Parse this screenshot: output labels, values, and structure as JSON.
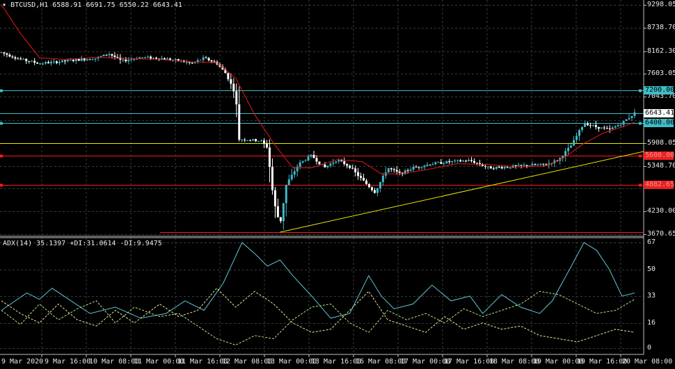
{
  "chart_header": {
    "symbol": "BTCUSD,H1",
    "ohlc": "6588.91 6691.75 6550.22 6643.41"
  },
  "indicator_header": {
    "label": "ADX(14) 35.1397 +DI:31.0614 -DI:9.9475"
  },
  "price_axis": [
    "9298.05",
    "8738.70",
    "8162.30",
    "7603.05",
    "7043.70",
    "5908.05",
    "5348.70",
    "4230.00",
    "3670.65"
  ],
  "level_tags": [
    {
      "text": "7200.00",
      "price": 7200,
      "bg": "#3fbcc6",
      "fg": "#000000",
      "line": "#3fbcc6"
    },
    {
      "text": "6400.00",
      "price": 6400,
      "bg": "#3fbcc6",
      "fg": "#000000",
      "line": "#3fbcc6"
    },
    {
      "text": "5600.00",
      "price": 5600,
      "bg": "#e82222",
      "fg": "#ff8c8c",
      "line": "#ff1a1a"
    },
    {
      "text": "4882.65",
      "price": 4882.65,
      "bg": "#e82222",
      "fg": "#ff8c8c",
      "line": "#ff1a1a"
    }
  ],
  "current_price": {
    "text": "6643.41",
    "price": 6643.41
  },
  "horizontal_levels": [
    {
      "price": 6643.41,
      "color": "#3fbcc6",
      "handle": false
    },
    {
      "price": 5908,
      "color": "#e8e800",
      "handle": false
    },
    {
      "price": 3720,
      "color": "#ff1a1a",
      "handle": false
    }
  ],
  "indicator_axis": [
    "67",
    "50",
    "33",
    "16",
    "0"
  ],
  "time_axis": [
    "9 Mar 2020",
    "9 Mar 16:00",
    "10 Mar 08:00",
    "11 Mar 00:00",
    "11 Mar 16:00",
    "12 Mar 08:00",
    "13 Mar 00:00",
    "13 Mar 16:00",
    "16 Mar 08:00",
    "17 Mar 00:00",
    "17 Mar 16:00",
    "18 Mar 08:00",
    "19 Mar 00:00",
    "19 Mar 16:00",
    "20 Mar 08:00"
  ],
  "colors": {
    "background": "#000000",
    "grid": "#3a3a3a",
    "bull_candle": "#40b8c8",
    "bear_candle": "#ffffff",
    "ma_line": "#e81818",
    "trendline": "#e8e800",
    "adx": "#5fc6d2",
    "plus_di": "#b8e888",
    "minus_di": "#e8e8a0",
    "text": "#e8e8e8"
  },
  "chart_data": {
    "type": "candlestick",
    "symbol": "BTCUSD",
    "timeframe": "H1",
    "ylim": [
      3670.65,
      9298.05
    ],
    "last": {
      "open": 6588.91,
      "high": 6691.75,
      "low": 6550.22,
      "close": 6643.41
    },
    "close_path": [
      {
        "t": 0,
        "price": 8130
      },
      {
        "t": 0.03,
        "price": 7960
      },
      {
        "t": 0.06,
        "price": 7860
      },
      {
        "t": 0.09,
        "price": 7900
      },
      {
        "t": 0.12,
        "price": 7950
      },
      {
        "t": 0.15,
        "price": 7990
      },
      {
        "t": 0.17,
        "price": 8100
      },
      {
        "t": 0.19,
        "price": 7920
      },
      {
        "t": 0.22,
        "price": 8010
      },
      {
        "t": 0.25,
        "price": 7990
      },
      {
        "t": 0.28,
        "price": 7930
      },
      {
        "t": 0.3,
        "price": 7860
      },
      {
        "t": 0.32,
        "price": 7990
      },
      {
        "t": 0.34,
        "price": 7870
      },
      {
        "t": 0.355,
        "price": 7600
      },
      {
        "t": 0.37,
        "price": 7100
      },
      {
        "t": 0.375,
        "price": 6000
      },
      {
        "t": 0.39,
        "price": 5990
      },
      {
        "t": 0.41,
        "price": 5960
      },
      {
        "t": 0.42,
        "price": 5800
      },
      {
        "t": 0.43,
        "price": 4480
      },
      {
        "t": 0.44,
        "price": 3900
      },
      {
        "t": 0.45,
        "price": 4900
      },
      {
        "t": 0.47,
        "price": 5400
      },
      {
        "t": 0.49,
        "price": 5600
      },
      {
        "t": 0.51,
        "price": 5300
      },
      {
        "t": 0.53,
        "price": 5500
      },
      {
        "t": 0.55,
        "price": 5330
      },
      {
        "t": 0.57,
        "price": 5000
      },
      {
        "t": 0.59,
        "price": 4700
      },
      {
        "t": 0.61,
        "price": 5300
      },
      {
        "t": 0.63,
        "price": 5150
      },
      {
        "t": 0.65,
        "price": 5300
      },
      {
        "t": 0.68,
        "price": 5400
      },
      {
        "t": 0.71,
        "price": 5450
      },
      {
        "t": 0.74,
        "price": 5480
      },
      {
        "t": 0.77,
        "price": 5300
      },
      {
        "t": 0.8,
        "price": 5320
      },
      {
        "t": 0.83,
        "price": 5360
      },
      {
        "t": 0.86,
        "price": 5380
      },
      {
        "t": 0.88,
        "price": 5500
      },
      {
        "t": 0.9,
        "price": 5850
      },
      {
        "t": 0.92,
        "price": 6400
      },
      {
        "t": 0.94,
        "price": 6300
      },
      {
        "t": 0.96,
        "price": 6230
      },
      {
        "t": 0.98,
        "price": 6400
      },
      {
        "t": 1.0,
        "price": 6643
      }
    ],
    "moving_average": [
      {
        "t": 0,
        "price": 9300
      },
      {
        "t": 0.03,
        "price": 8600
      },
      {
        "t": 0.06,
        "price": 8000
      },
      {
        "t": 0.1,
        "price": 7960
      },
      {
        "t": 0.15,
        "price": 8010
      },
      {
        "t": 0.2,
        "price": 7980
      },
      {
        "t": 0.25,
        "price": 7960
      },
      {
        "t": 0.3,
        "price": 7900
      },
      {
        "t": 0.34,
        "price": 7880
      },
      {
        "t": 0.37,
        "price": 7500
      },
      {
        "t": 0.4,
        "price": 6600
      },
      {
        "t": 0.43,
        "price": 5900
      },
      {
        "t": 0.46,
        "price": 5300
      },
      {
        "t": 0.49,
        "price": 5300
      },
      {
        "t": 0.53,
        "price": 5500
      },
      {
        "t": 0.57,
        "price": 5450
      },
      {
        "t": 0.6,
        "price": 5150
      },
      {
        "t": 0.63,
        "price": 5150
      },
      {
        "t": 0.67,
        "price": 5250
      },
      {
        "t": 0.72,
        "price": 5400
      },
      {
        "t": 0.77,
        "price": 5380
      },
      {
        "t": 0.82,
        "price": 5320
      },
      {
        "t": 0.86,
        "price": 5350
      },
      {
        "t": 0.89,
        "price": 5560
      },
      {
        "t": 0.92,
        "price": 5900
      },
      {
        "t": 0.95,
        "price": 6150
      },
      {
        "t": 0.98,
        "price": 6300
      },
      {
        "t": 1.0,
        "price": 6420
      }
    ],
    "trendline": [
      {
        "t": 0.44,
        "price": 3720
      },
      {
        "t": 1.0,
        "price": 5700
      }
    ],
    "adx": [
      {
        "t": 0,
        "v": 24
      },
      {
        "t": 0.04,
        "v": 35
      },
      {
        "t": 0.06,
        "v": 31
      },
      {
        "t": 0.08,
        "v": 38
      },
      {
        "t": 0.11,
        "v": 30
      },
      {
        "t": 0.14,
        "v": 22
      },
      {
        "t": 0.18,
        "v": 26
      },
      {
        "t": 0.22,
        "v": 19
      },
      {
        "t": 0.26,
        "v": 22
      },
      {
        "t": 0.29,
        "v": 30
      },
      {
        "t": 0.32,
        "v": 24
      },
      {
        "t": 0.35,
        "v": 41
      },
      {
        "t": 0.38,
        "v": 67
      },
      {
        "t": 0.4,
        "v": 60
      },
      {
        "t": 0.42,
        "v": 52
      },
      {
        "t": 0.44,
        "v": 56
      },
      {
        "t": 0.46,
        "v": 46
      },
      {
        "t": 0.49,
        "v": 33
      },
      {
        "t": 0.52,
        "v": 19
      },
      {
        "t": 0.55,
        "v": 22
      },
      {
        "t": 0.58,
        "v": 46
      },
      {
        "t": 0.6,
        "v": 33
      },
      {
        "t": 0.62,
        "v": 25
      },
      {
        "t": 0.65,
        "v": 28
      },
      {
        "t": 0.68,
        "v": 40
      },
      {
        "t": 0.71,
        "v": 30
      },
      {
        "t": 0.74,
        "v": 33
      },
      {
        "t": 0.76,
        "v": 22
      },
      {
        "t": 0.79,
        "v": 34
      },
      {
        "t": 0.82,
        "v": 26
      },
      {
        "t": 0.85,
        "v": 22
      },
      {
        "t": 0.87,
        "v": 30
      },
      {
        "t": 0.9,
        "v": 52
      },
      {
        "t": 0.92,
        "v": 67
      },
      {
        "t": 0.94,
        "v": 62
      },
      {
        "t": 0.96,
        "v": 50
      },
      {
        "t": 0.98,
        "v": 33
      },
      {
        "t": 1.0,
        "v": 35
      }
    ],
    "plus_di": [
      {
        "t": 0,
        "v": 24
      },
      {
        "t": 0.03,
        "v": 15
      },
      {
        "t": 0.06,
        "v": 28
      },
      {
        "t": 0.09,
        "v": 18
      },
      {
        "t": 0.12,
        "v": 25
      },
      {
        "t": 0.15,
        "v": 30
      },
      {
        "t": 0.18,
        "v": 16
      },
      {
        "t": 0.21,
        "v": 26
      },
      {
        "t": 0.25,
        "v": 20
      },
      {
        "t": 0.28,
        "v": 22
      },
      {
        "t": 0.31,
        "v": 14
      },
      {
        "t": 0.34,
        "v": 6
      },
      {
        "t": 0.37,
        "v": 2
      },
      {
        "t": 0.4,
        "v": 8
      },
      {
        "t": 0.43,
        "v": 6
      },
      {
        "t": 0.46,
        "v": 18
      },
      {
        "t": 0.49,
        "v": 26
      },
      {
        "t": 0.52,
        "v": 28
      },
      {
        "t": 0.55,
        "v": 16
      },
      {
        "t": 0.58,
        "v": 10
      },
      {
        "t": 0.61,
        "v": 24
      },
      {
        "t": 0.64,
        "v": 18
      },
      {
        "t": 0.67,
        "v": 22
      },
      {
        "t": 0.7,
        "v": 16
      },
      {
        "t": 0.73,
        "v": 25
      },
      {
        "t": 0.76,
        "v": 20
      },
      {
        "t": 0.79,
        "v": 24
      },
      {
        "t": 0.82,
        "v": 28
      },
      {
        "t": 0.85,
        "v": 36
      },
      {
        "t": 0.88,
        "v": 34
      },
      {
        "t": 0.91,
        "v": 28
      },
      {
        "t": 0.94,
        "v": 22
      },
      {
        "t": 0.97,
        "v": 24
      },
      {
        "t": 1.0,
        "v": 31
      }
    ],
    "minus_di": [
      {
        "t": 0,
        "v": 30
      },
      {
        "t": 0.03,
        "v": 22
      },
      {
        "t": 0.06,
        "v": 16
      },
      {
        "t": 0.09,
        "v": 28
      },
      {
        "t": 0.12,
        "v": 18
      },
      {
        "t": 0.15,
        "v": 14
      },
      {
        "t": 0.18,
        "v": 24
      },
      {
        "t": 0.21,
        "v": 16
      },
      {
        "t": 0.25,
        "v": 28
      },
      {
        "t": 0.28,
        "v": 20
      },
      {
        "t": 0.31,
        "v": 24
      },
      {
        "t": 0.34,
        "v": 38
      },
      {
        "t": 0.37,
        "v": 26
      },
      {
        "t": 0.4,
        "v": 36
      },
      {
        "t": 0.43,
        "v": 28
      },
      {
        "t": 0.46,
        "v": 16
      },
      {
        "t": 0.49,
        "v": 10
      },
      {
        "t": 0.52,
        "v": 12
      },
      {
        "t": 0.55,
        "v": 24
      },
      {
        "t": 0.58,
        "v": 36
      },
      {
        "t": 0.61,
        "v": 18
      },
      {
        "t": 0.64,
        "v": 14
      },
      {
        "t": 0.67,
        "v": 10
      },
      {
        "t": 0.7,
        "v": 20
      },
      {
        "t": 0.73,
        "v": 12
      },
      {
        "t": 0.76,
        "v": 16
      },
      {
        "t": 0.79,
        "v": 12
      },
      {
        "t": 0.82,
        "v": 14
      },
      {
        "t": 0.85,
        "v": 8
      },
      {
        "t": 0.88,
        "v": 6
      },
      {
        "t": 0.91,
        "v": 4
      },
      {
        "t": 0.94,
        "v": 8
      },
      {
        "t": 0.97,
        "v": 12
      },
      {
        "t": 1.0,
        "v": 10
      }
    ]
  }
}
